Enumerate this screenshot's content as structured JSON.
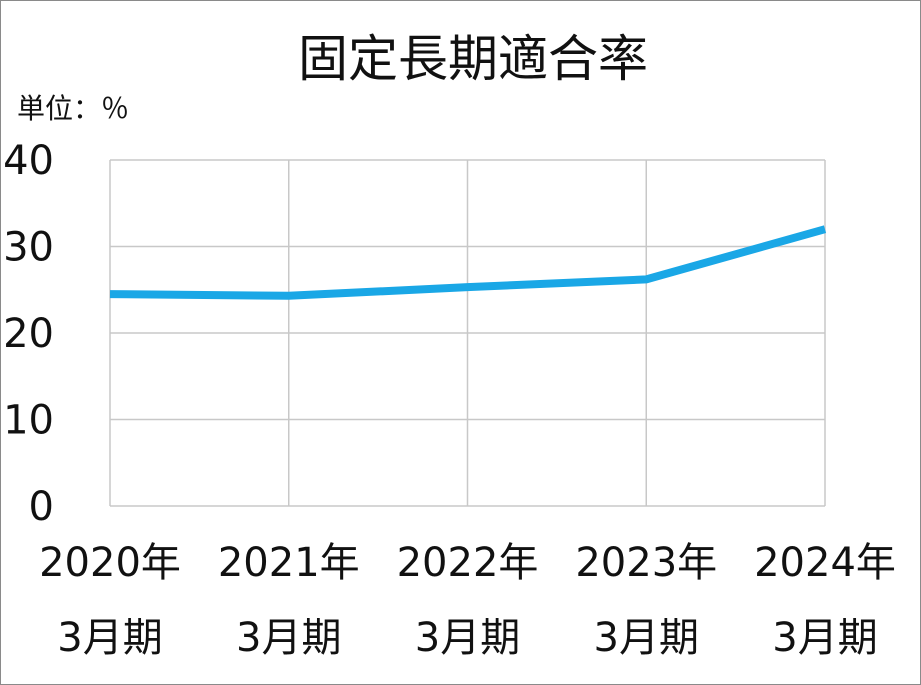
{
  "chart_data": {
    "type": "line",
    "title": "固定長期適合率",
    "unit_label": "単位：％",
    "categories": [
      [
        "2020年",
        "3月期"
      ],
      [
        "2021年",
        "3月期"
      ],
      [
        "2022年",
        "3月期"
      ],
      [
        "2023年",
        "3月期"
      ],
      [
        "2024年",
        "3月期"
      ]
    ],
    "series": [
      {
        "values": [
          24.5,
          24.3,
          25.3,
          26.2,
          32.0
        ],
        "color": "#1aa7e6"
      }
    ],
    "ylim": [
      0,
      40
    ],
    "yticks": [
      0,
      10,
      20,
      30,
      40
    ],
    "grid": true,
    "gridColor": "#c8c8c8"
  }
}
